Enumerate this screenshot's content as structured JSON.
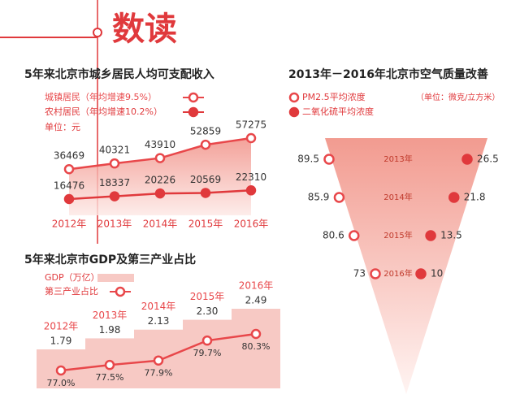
{
  "header": {
    "title": "数读"
  },
  "chart_data": [
    {
      "type": "line",
      "title": "5年来北京市城乡居民人均可支配收入",
      "unit": "单位：元",
      "categories": [
        "2012年",
        "2013年",
        "2014年",
        "2015年",
        "2016年"
      ],
      "series": [
        {
          "name": "城镇居民（年均增速9.5%）",
          "color": "#e8474a",
          "values": [
            36469,
            40321,
            43910,
            52859,
            57275
          ]
        },
        {
          "name": "农村居民（年均增速10.2%）",
          "color": "#e0393c",
          "values": [
            16476,
            18337,
            20226,
            20569,
            22310
          ]
        }
      ]
    },
    {
      "type": "bar-line",
      "title": "5年来北京市GDP及第三产业占比",
      "categories": [
        "2012年",
        "2013年",
        "2014年",
        "2015年",
        "2016年"
      ],
      "series": [
        {
          "name": "GDP（万亿）",
          "color": "#f7c9c4",
          "values": [
            1.79,
            1.98,
            2.13,
            2.3,
            2.49
          ],
          "value_labels": [
            "1.79",
            "1.98",
            "2.13",
            "2.30",
            "2.49"
          ]
        },
        {
          "name": "第三产业占比",
          "color": "#e8474a",
          "values": [
            77.0,
            77.5,
            77.9,
            79.7,
            80.3
          ],
          "value_labels": [
            "77.0%",
            "77.5%",
            "77.9%",
            "79.7%",
            "80.3%"
          ]
        }
      ]
    },
    {
      "type": "funnel",
      "title": "2013年－2016年北京市空气质量改善",
      "unit": "（单位：微克/立方米）",
      "categories": [
        "2013年",
        "2014年",
        "2015年",
        "2016年"
      ],
      "series": [
        {
          "name": "PM2.5平均浓度",
          "color": "#e8474a",
          "values": [
            89.5,
            85.9,
            80.6,
            73
          ]
        },
        {
          "name": "二氧化硫平均浓度",
          "color": "#e0393c",
          "values": [
            26.5,
            21.8,
            13.5,
            10
          ]
        }
      ]
    }
  ]
}
